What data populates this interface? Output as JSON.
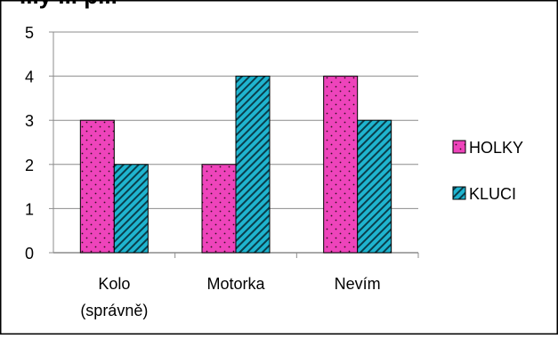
{
  "title_fragment": "...y ... p...",
  "chart_data": {
    "type": "bar",
    "categories": [
      "Kolo\n(správně)",
      "Motorka",
      "Nevím"
    ],
    "series": [
      {
        "name": "HOLKY",
        "values": [
          3,
          2,
          4
        ],
        "color": "#ee44bb",
        "pattern": "dots"
      },
      {
        "name": "KLUCI",
        "values": [
          2,
          4,
          3
        ],
        "color": "#1fb4cf",
        "pattern": "diagonal-stripes"
      }
    ],
    "ylim": [
      0,
      5
    ],
    "yticks": [
      0,
      1,
      2,
      3,
      4,
      5
    ],
    "grid": true,
    "legend": "right"
  }
}
